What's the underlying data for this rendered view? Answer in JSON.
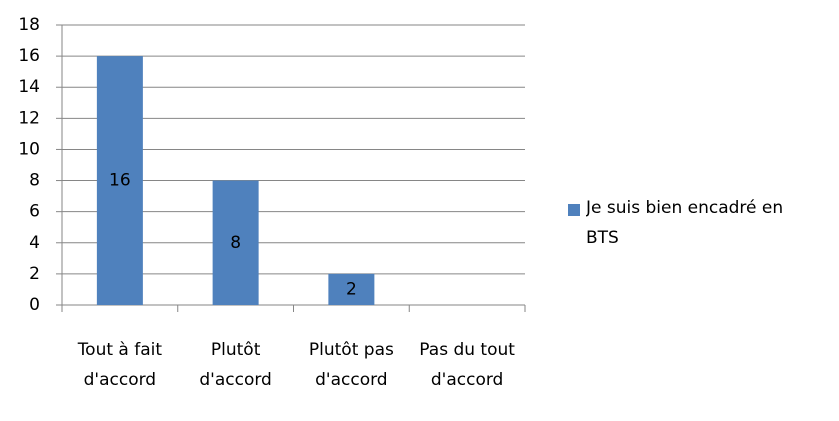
{
  "chart_data": {
    "type": "bar",
    "categories": [
      "Tout à fait d'accord",
      "Plutôt d'accord",
      "Plutôt pas d'accord",
      "Pas du tout d'accord"
    ],
    "series": [
      {
        "name": "Je suis bien encadré en BTS",
        "color": "#4f81bd",
        "values": [
          16,
          8,
          2,
          0
        ]
      }
    ],
    "ylim": [
      0,
      18
    ],
    "yticks": [
      0,
      2,
      4,
      6,
      8,
      10,
      12,
      14,
      16,
      18
    ],
    "grid": true,
    "legend": "right"
  }
}
